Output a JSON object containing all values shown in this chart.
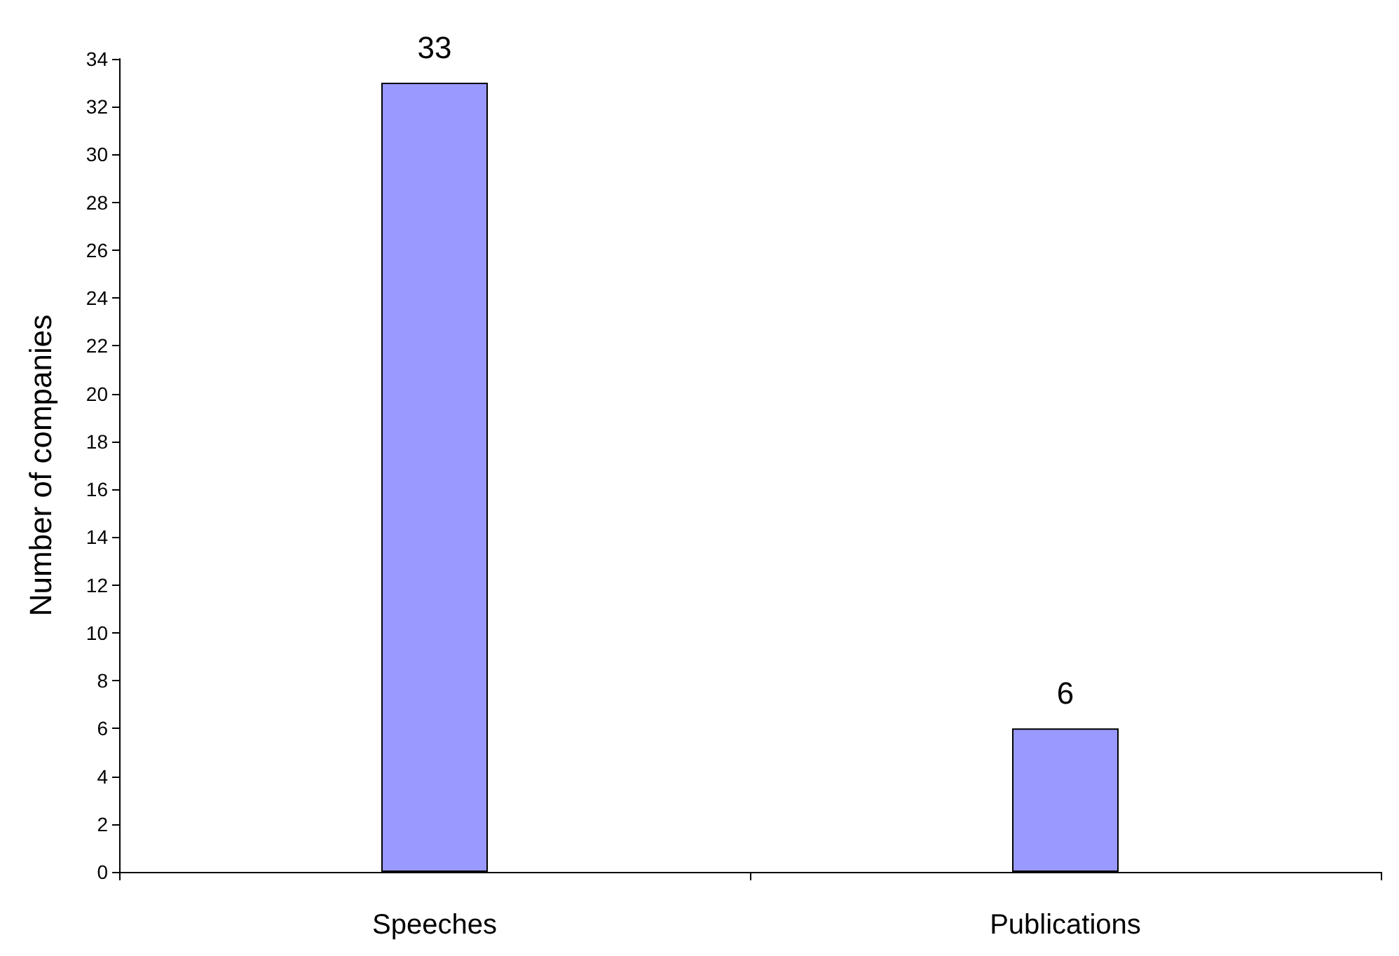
{
  "chart_data": {
    "type": "bar",
    "ylabel": "Number of companies",
    "categories": [
      "Speeches",
      "Publications"
    ],
    "values": [
      33,
      6
    ],
    "color": "#9999ff",
    "ylim": [
      0,
      34
    ],
    "yticks": [
      0,
      2,
      4,
      6,
      8,
      10,
      12,
      14,
      16,
      18,
      20,
      22,
      24,
      26,
      28,
      30,
      32,
      34
    ],
    "grid": false,
    "data_labels": true
  }
}
